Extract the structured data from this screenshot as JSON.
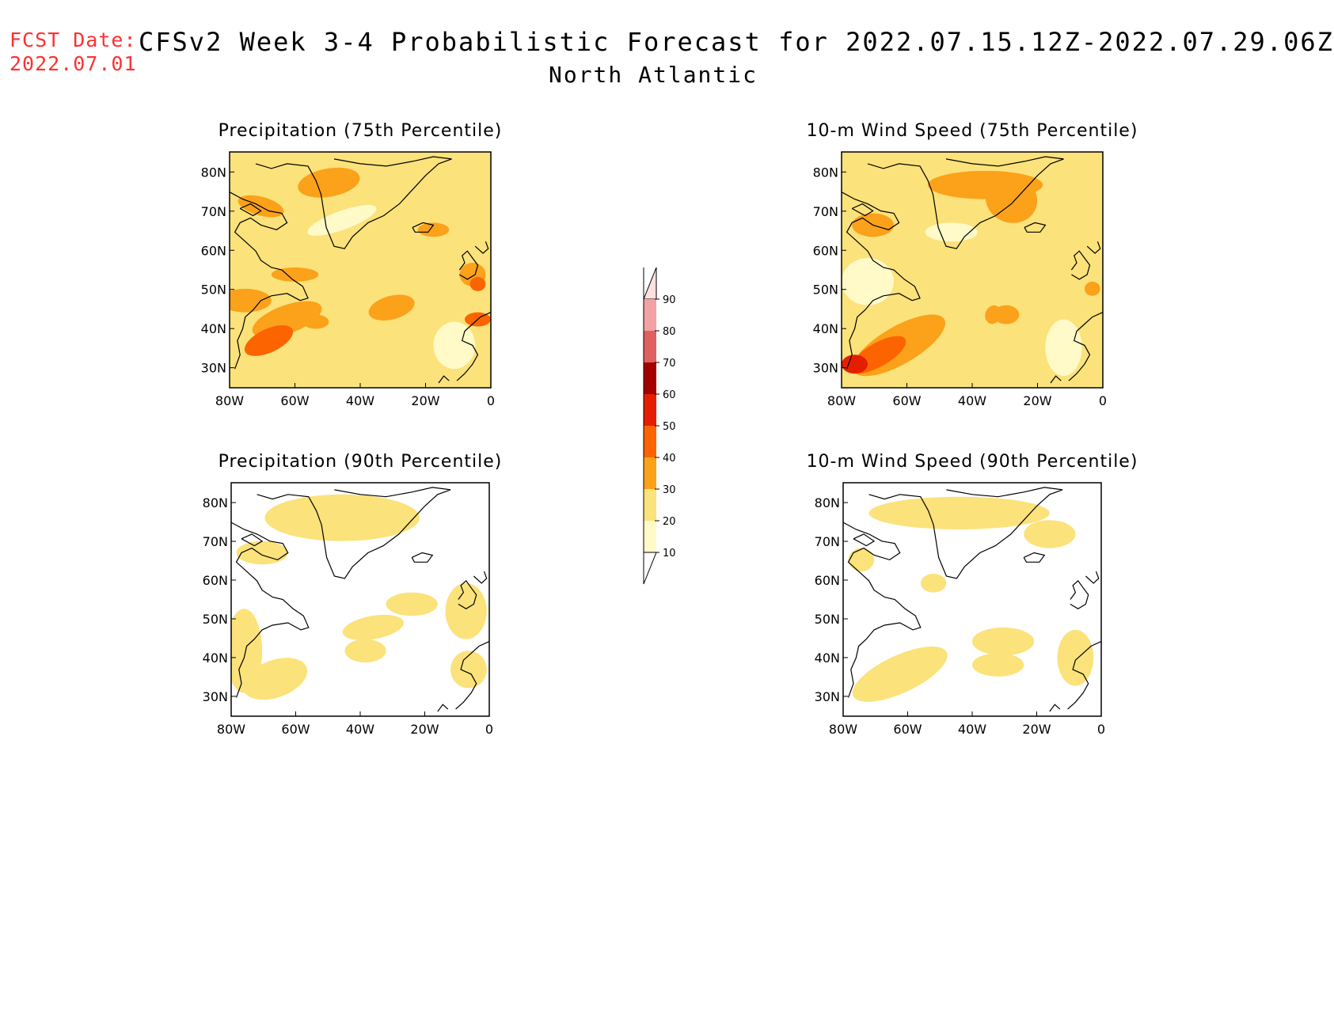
{
  "header": {
    "fcst_label": "FCST Date:",
    "fcst_date": "2022.07.01",
    "title": "CFSv2 Week 3-4 Probabilistic Forecast for 2022.07.15.12Z-2022.07.29.06Z",
    "subtitle": "North Atlantic"
  },
  "axes": {
    "x_ticks": [
      "80W",
      "60W",
      "40W",
      "20W",
      "0"
    ],
    "y_ticks": [
      "80N",
      "70N",
      "60N",
      "50N",
      "40N",
      "30N"
    ]
  },
  "panels": [
    {
      "id": "precip-75",
      "title": "Precipitation (75th Percentile)",
      "dominant_level": 20
    },
    {
      "id": "wind-75",
      "title": "10-m Wind Speed (75th Percentile)",
      "dominant_level": 20
    },
    {
      "id": "precip-90",
      "title": "Precipitation (90th Percentile)",
      "dominant_level": 10
    },
    {
      "id": "wind-90",
      "title": "10-m Wind Speed (90th Percentile)",
      "dominant_level": 10
    }
  ],
  "colorbar": {
    "labels": [
      "90",
      "80",
      "70",
      "60",
      "50",
      "40",
      "30",
      "20",
      "10"
    ],
    "colors": {
      "10": "#fffac8",
      "20": "#fbe27a",
      "30": "#fba11a",
      "40": "#fb6400",
      "50": "#e61e00",
      "60": "#a50000",
      "70": "#e06060",
      "80": "#f2a2a2",
      "90": "#ffe0e0"
    }
  }
}
